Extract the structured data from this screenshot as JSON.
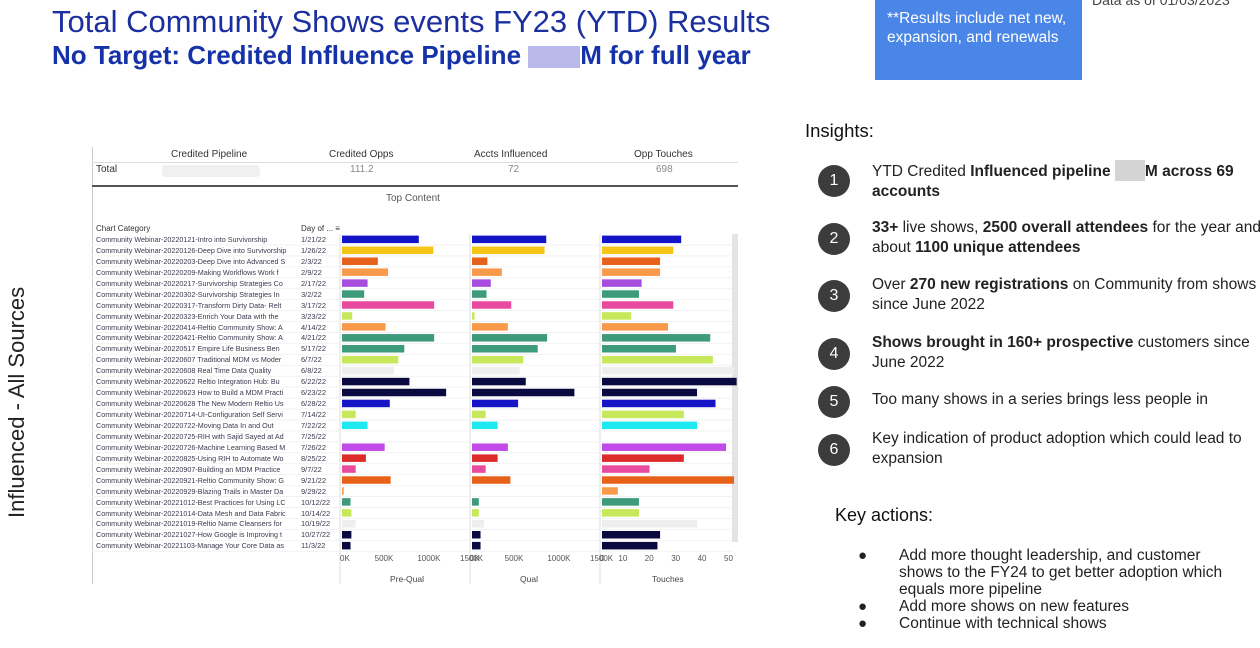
{
  "header": {
    "title": "Total Community Shows events FY23 (YTD) Results",
    "subtitle_prefix": "No Target:  Credited Influence Pipeline ",
    "subtitle_suffix": "M for full year"
  },
  "note": "**Results include net new, expansion, and renewals",
  "date_text": "Data as of 01/03/2023",
  "side_label": "Influenced - All Sources",
  "insights": {
    "heading": "Insights:",
    "items": [
      {
        "num": "1",
        "a": "YTD Credited ",
        "b": "Influenced pipeline",
        "c": "",
        "d": "M across 69 accounts",
        "redact": true
      },
      {
        "num": "2",
        "a": "",
        "b": "33+",
        "c": " live shows,  ",
        "d": "2500 overall attendees",
        "e": " for the year and about  ",
        "f": "1100 unique attendees"
      },
      {
        "num": "3",
        "a": "Over ",
        "b": "270 new registrations",
        "c": " on Community from shows since June 2022"
      },
      {
        "num": "4",
        "a": "",
        "b": "Shows brought in 160+ prospective",
        "c": " customers since June 2022"
      },
      {
        "num": "5",
        "a": "Too many shows in a series brings less people in"
      },
      {
        "num": "6",
        "a": "Key indication of product adoption which could lead to expansion"
      }
    ]
  },
  "key_actions": {
    "heading": "Key actions:",
    "items": [
      "Add more thought leadership,  and customer shows to the FY24 to get better adoption which equals more pipeline",
      "Add more shows on new features",
      "Continue with technical shows"
    ]
  },
  "chart_data": {
    "type": "bar",
    "title": "Top Content",
    "category_header": "Chart Category",
    "date_header": "Day of ... ≡",
    "totals": {
      "label": "Total",
      "credited_pipeline": "",
      "credited_opps": "111.2",
      "accts_influenced": "72",
      "opp_touches": "698"
    },
    "column_headers": [
      "Credited Pipeline",
      "Credited Opps",
      "Accts Influenced",
      "Opp Touches"
    ],
    "panels": [
      {
        "name": "Pre-Qual",
        "ticks": [
          "0K",
          "500K",
          "1000K",
          "1500K"
        ],
        "max": 1500000
      },
      {
        "name": "Qual",
        "ticks": [
          "0K",
          "500K",
          "1000K",
          "1500K"
        ],
        "max": 1500000
      },
      {
        "name": "Touches",
        "ticks": [
          "0",
          "10",
          "20",
          "30",
          "40",
          "50"
        ],
        "max": 50
      }
    ],
    "rows": [
      {
        "label": "Community Webinar-20220121-Intro into Survivorship",
        "date": "1/21/22",
        "color": "#1515c8",
        "prequal": 900000,
        "qual": 870000,
        "touches": 30
      },
      {
        "label": "Community Webinar-20220126-Deep Dive into Survivorship",
        "date": "1/26/22",
        "color": "#f5c518",
        "prequal": 1070000,
        "qual": 850000,
        "touches": 27
      },
      {
        "label": "Community Webinar-20220203-Deep Dive into Advanced S",
        "date": "2/3/22",
        "color": "#e8611a",
        "prequal": 420000,
        "qual": 180000,
        "touches": 22
      },
      {
        "label": "Community Webinar-20220209-Making Workflows Work f",
        "date": "2/9/22",
        "color": "#f99a4a",
        "prequal": 540000,
        "qual": 350000,
        "touches": 22
      },
      {
        "label": "Community Webinar-20220217-Survivorship Strategies Co",
        "date": "2/17/22",
        "color": "#a64dde",
        "prequal": 300000,
        "qual": 220000,
        "touches": 15
      },
      {
        "label": "Community Webinar-20220302-Survivorship Strategies In",
        "date": "3/2/22",
        "color": "#3d9a7a",
        "prequal": 260000,
        "qual": 170000,
        "touches": 14
      },
      {
        "label": "Community Webinar-20220317-Transform Dirty Data- Relt",
        "date": "3/17/22",
        "color": "#e84aa0",
        "prequal": 1080000,
        "qual": 460000,
        "touches": 27
      },
      {
        "label": "Community Webinar-20220323-Enrich Your Data with the",
        "date": "3/23/22",
        "color": "#c6e85a",
        "prequal": 120000,
        "qual": 30000,
        "touches": 11
      },
      {
        "label": "Community Webinar-20220414-Reltio Community Show: A",
        "date": "4/14/22",
        "color": "#f99a4a",
        "prequal": 510000,
        "qual": 420000,
        "touches": 25
      },
      {
        "label": "Community Webinar-20220421-Reltio Community Show: A",
        "date": "4/21/22",
        "color": "#3d9a7a",
        "prequal": 1080000,
        "qual": 880000,
        "touches": 41
      },
      {
        "label": "Community Webinar-20220517 Empire Life  Business Ben",
        "date": "5/17/22",
        "color": "#3d9a7a",
        "prequal": 730000,
        "qual": 770000,
        "touches": 28
      },
      {
        "label": "Community Webinar-20220607 Traditional MDM vs Moder",
        "date": "6/7/22",
        "color": "#c6e85a",
        "prequal": 660000,
        "qual": 600000,
        "touches": 42
      },
      {
        "label": "Community Webinar-20220608 Real Time Data Quality",
        "date": "6/8/22",
        "color": "#eeeeee",
        "prequal": 610000,
        "qual": 560000,
        "touches": 50
      },
      {
        "label": "Community Webinar-20220622 Reltio Integration Hub: Bu",
        "date": "6/22/22",
        "color": "#0a0a40",
        "prequal": 790000,
        "qual": 630000,
        "touches": 51
      },
      {
        "label": "Community Webinar-20220623 How to Build a MDM Practi",
        "date": "6/23/22",
        "color": "#0a0a40",
        "prequal": 1220000,
        "qual": 1200000,
        "touches": 36
      },
      {
        "label": "Community Webinar-20220628 The New Modern Reltio Us",
        "date": "6/28/22",
        "color": "#1515c8",
        "prequal": 560000,
        "qual": 540000,
        "touches": 43
      },
      {
        "label": "Community Webinar-20220714-UI-Configuration Self Servi",
        "date": "7/14/22",
        "color": "#c6e85a",
        "prequal": 160000,
        "qual": 160000,
        "touches": 31
      },
      {
        "label": "Community Webinar-20220722-Moving Data In and Out",
        "date": "7/22/22",
        "color": "#1ee8f0",
        "prequal": 300000,
        "qual": 300000,
        "touches": 36
      },
      {
        "label": "Community Webinar-20220725-RIH with Sajid Sayed at Ad",
        "date": "7/25/22",
        "color": "#eeeeee",
        "prequal": 0,
        "qual": 0,
        "touches": 0
      },
      {
        "label": "Community Webinar-20220726-Machine Learning Based M",
        "date": "7/26/22",
        "color": "#c24ae8",
        "prequal": 500000,
        "qual": 420000,
        "touches": 47
      },
      {
        "label": "Community Webinar-20220825-Using RIH to Automate Wo",
        "date": "8/25/22",
        "color": "#dd2a2a",
        "prequal": 280000,
        "qual": 300000,
        "touches": 31
      },
      {
        "label": "Community Webinar-20220907-Building an MDM Practice",
        "date": "9/7/22",
        "color": "#e84aa0",
        "prequal": 160000,
        "qual": 160000,
        "touches": 18
      },
      {
        "label": "Community Webinar-20220921-Reltio Community Show: G",
        "date": "9/21/22",
        "color": "#e8611a",
        "prequal": 570000,
        "qual": 450000,
        "touches": 50
      },
      {
        "label": "Community Webinar-20220929-Blazing Trails in Master Da",
        "date": "9/29/22",
        "color": "#f99a4a",
        "prequal": 20000,
        "qual": 0,
        "touches": 6
      },
      {
        "label": "Community Webinar-20221012-Best Practices for Using LC",
        "date": "10/12/22",
        "color": "#3d9a7a",
        "prequal": 100000,
        "qual": 80000,
        "touches": 14
      },
      {
        "label": "Community Webinar-20221014-Data Mesh and Data Fabric",
        "date": "10/14/22",
        "color": "#c6e85a",
        "prequal": 110000,
        "qual": 80000,
        "touches": 14
      },
      {
        "label": "Community Webinar-20221019-Reltio Name Cleansers for",
        "date": "10/19/22",
        "color": "#eeeeee",
        "prequal": 160000,
        "qual": 140000,
        "touches": 36
      },
      {
        "label": "Community Webinar-20221027-How Google is Improving t",
        "date": "10/27/22",
        "color": "#0a0a40",
        "prequal": 110000,
        "qual": 100000,
        "touches": 22
      },
      {
        "label": "Community Webinar-20221103-Manage Your Core Data as",
        "date": "11/3/22",
        "color": "#0a0a40",
        "prequal": 100000,
        "qual": 100000,
        "touches": 21
      }
    ]
  }
}
